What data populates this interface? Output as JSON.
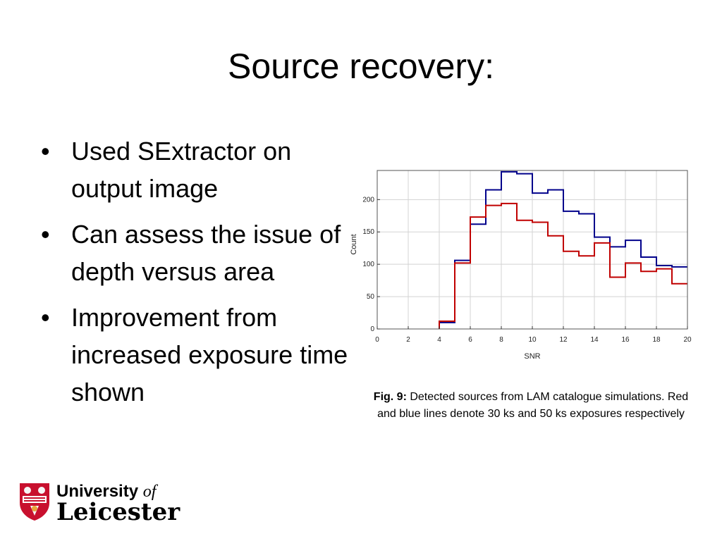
{
  "slide": {
    "title": "Source recovery:",
    "bullets": [
      "Used SExtractor on output image",
      "Can assess the issue of depth versus area",
      "Improvement from increased exposure time shown"
    ]
  },
  "caption": {
    "label": "Fig. 9:",
    "text": " Detected sources from LAM catalogue simulations. Red and blue lines denote 30 ks and 50 ks exposures respectively"
  },
  "logo": {
    "university": "University ",
    "of": "of",
    "name": "Leicester",
    "shield_text": "UNIVERSITY OF LEICESTER"
  },
  "chart_data": {
    "type": "line",
    "xlabel": "SNR",
    "ylabel": "Count",
    "xlim": [
      0,
      20
    ],
    "ylim": [
      0,
      245
    ],
    "x_ticks": [
      0,
      2,
      4,
      6,
      8,
      10,
      12,
      14,
      16,
      18,
      20
    ],
    "y_ticks": [
      0,
      50,
      100,
      150,
      200
    ],
    "grid": true,
    "bin_edges": [
      4,
      5,
      6,
      7,
      8,
      9,
      10,
      11,
      12,
      13,
      14,
      15,
      16,
      17,
      18,
      19,
      20
    ],
    "series": [
      {
        "color": "#00008b",
        "values": [
          10,
          106,
          162,
          215,
          243,
          240,
          210,
          215,
          182,
          178,
          142,
          127,
          137,
          111,
          98,
          96
        ]
      },
      {
        "color": "#c00000",
        "values": [
          12,
          102,
          173,
          191,
          194,
          168,
          165,
          144,
          120,
          113,
          133,
          80,
          102,
          89,
          93,
          70
        ]
      }
    ]
  }
}
